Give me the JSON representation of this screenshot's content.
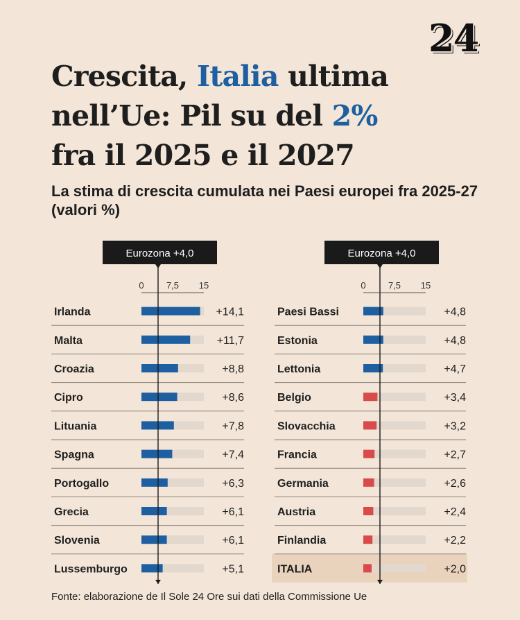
{
  "logo": "24",
  "title": {
    "part1": "Crescita, ",
    "highlight1": "Italia",
    "part2": " ultima nell’Ue: Pil su del ",
    "highlight2": "2%",
    "part3": " fra il 2025 e il 2027"
  },
  "subtitle": "La stima di crescita cumulata nei Paesi europei fra 2025-27 (valori %)",
  "source": "Fonte: elaborazione de Il Sole 24 Ore sui dati della Commissione Ue",
  "colors": {
    "above_eurozone": "#1d5fa0",
    "below_eurozone": "#d94a4a",
    "track": "#e2d8ce",
    "highlight_row": "#ead3bd"
  },
  "chart_data": [
    {
      "type": "bar",
      "orientation": "horizontal",
      "reference": {
        "label": "Eurozona +4,0",
        "value": 4.0
      },
      "ticks": [
        "0",
        "7,5",
        "15"
      ],
      "xlim": [
        0,
        15
      ],
      "categories": [
        "Irlanda",
        "Malta",
        "Croazia",
        "Cipro",
        "Lituania",
        "Spagna",
        "Portogallo",
        "Grecia",
        "Slovenia",
        "Lussemburgo"
      ],
      "values": [
        14.1,
        11.7,
        8.8,
        8.6,
        7.8,
        7.4,
        6.3,
        6.1,
        6.1,
        5.1
      ],
      "labels": [
        "+14,1",
        "+11,7",
        "+8,8",
        "+8,6",
        "+7,8",
        "+7,4",
        "+6,3",
        "+6,1",
        "+6,1",
        "+5,1"
      ]
    },
    {
      "type": "bar",
      "orientation": "horizontal",
      "reference": {
        "label": "Eurozona +4,0",
        "value": 4.0
      },
      "ticks": [
        "0",
        "7,5",
        "15"
      ],
      "xlim": [
        0,
        15
      ],
      "categories": [
        "Paesi Bassi",
        "Estonia",
        "Lettonia",
        "Belgio",
        "Slovacchia",
        "Francia",
        "Germania",
        "Austria",
        "Finlandia",
        "ITALIA"
      ],
      "values": [
        4.8,
        4.8,
        4.7,
        3.4,
        3.2,
        2.7,
        2.6,
        2.4,
        2.2,
        2.0
      ],
      "labels": [
        "+4,8",
        "+4,8",
        "+4,7",
        "+3,4",
        "+3,2",
        "+2,7",
        "+2,6",
        "+2,4",
        "+2,2",
        "+2,0"
      ],
      "highlighted": "ITALIA"
    }
  ]
}
